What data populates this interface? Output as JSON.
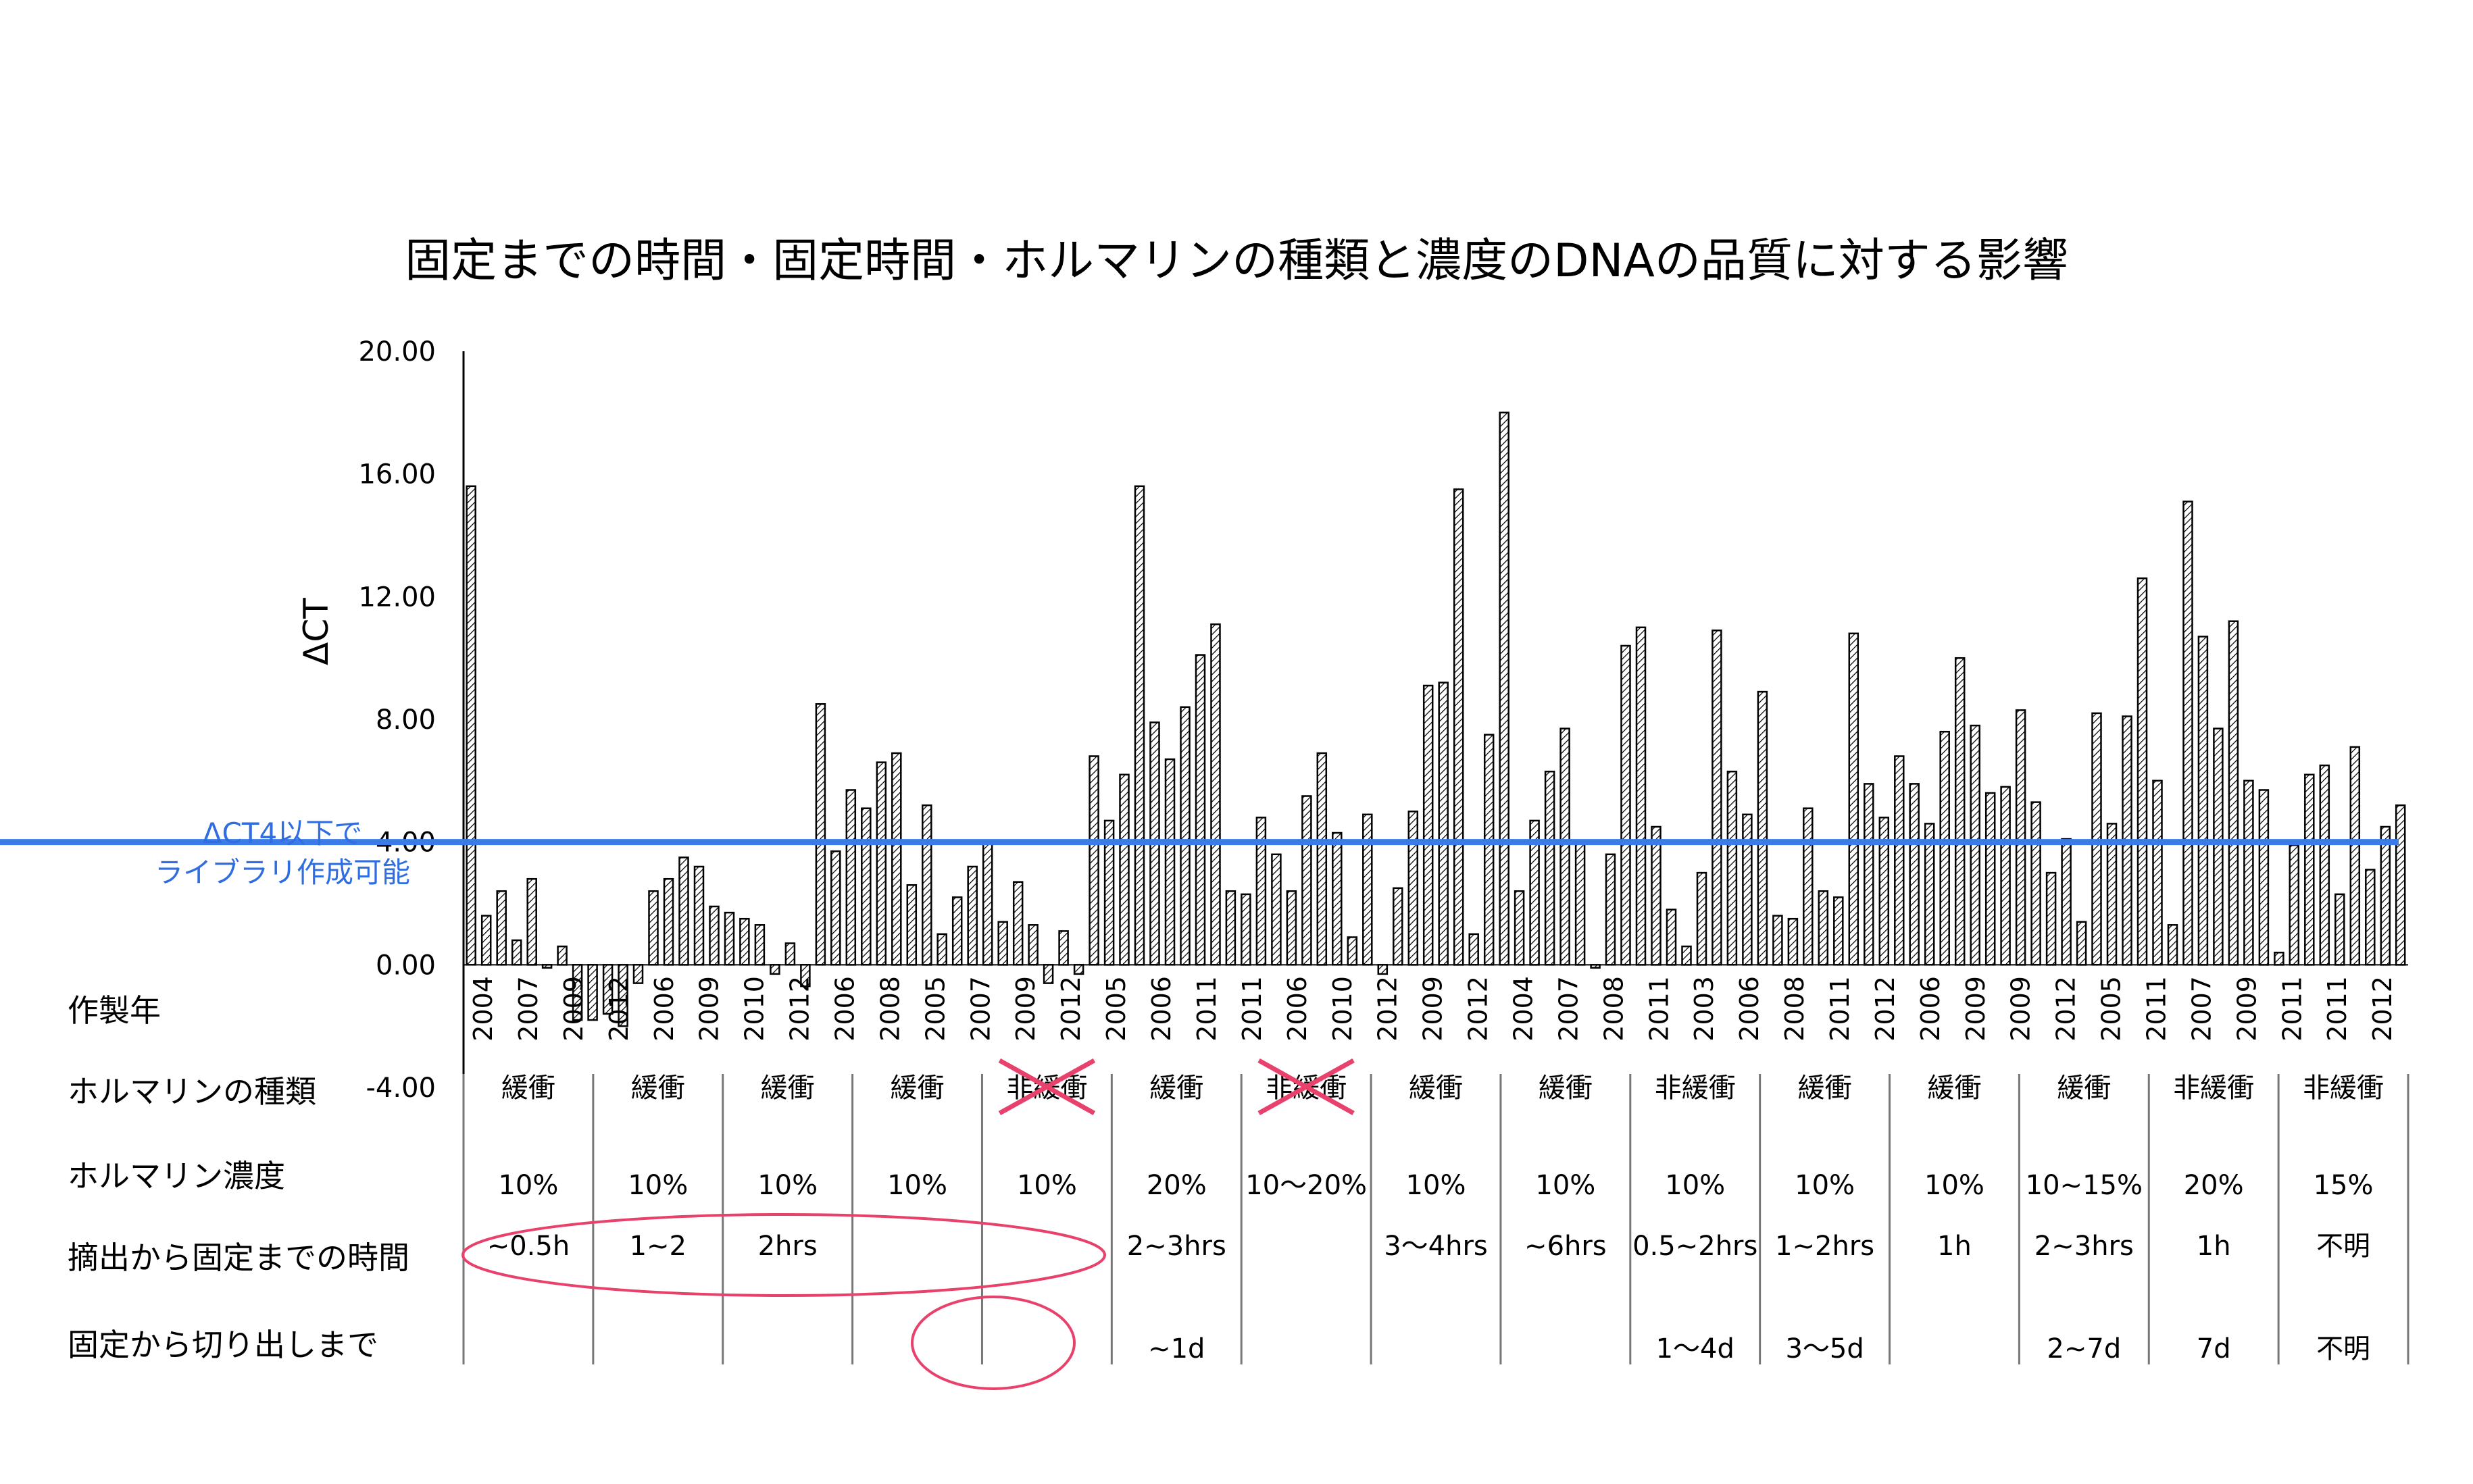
{
  "title": "固定までの時間・固定時間・ホルマリンの種類と濃度のDNAの品質に対する影響",
  "row_labels": {
    "year": "作製年",
    "formalin_type": "ホルマリンの種類",
    "formalin_conc": "ホルマリン濃度",
    "time_to_fix": "摘出から固定までの時間",
    "fix_to_cut": "固定から切り出しまで"
  },
  "threshold_annotation": {
    "line1": "ΔCT4以下で",
    "line2": "ライブラリ作成可能"
  },
  "colors": {
    "threshold": "#3b7be8",
    "highlight": "#e8416b",
    "bar_stroke": "#000000",
    "annotation_text": "#2f6de1"
  },
  "chart_data": {
    "type": "bar",
    "title": "固定までの時間・固定時間・ホルマリンの種類と濃度のDNAの品質に対する影響",
    "ylabel": "ΔCT",
    "xlabel": "作製年",
    "ylim": [
      -4,
      20
    ],
    "yticks": [
      "20.00",
      "16.00",
      "12.00",
      "8.00",
      "4.00",
      "0.00",
      "-4.00"
    ],
    "threshold": 4.0,
    "bar_pattern": "hatched",
    "values": [
      15.6,
      1.6,
      2.4,
      0.8,
      2.8,
      -0.1,
      0.6,
      -1.8,
      -1.8,
      -1.6,
      -2.0,
      -0.6,
      2.4,
      2.8,
      3.5,
      3.2,
      1.9,
      1.7,
      1.5,
      1.3,
      -0.3,
      0.7,
      -0.7,
      8.5,
      3.7,
      5.7,
      5.1,
      6.6,
      6.9,
      2.6,
      5.2,
      1.0,
      2.2,
      3.2,
      4.0,
      1.4,
      2.7,
      1.3,
      -0.6,
      1.1,
      -0.3,
      6.8,
      4.7,
      6.2,
      15.6,
      7.9,
      6.7,
      8.4,
      10.1,
      11.1,
      2.4,
      2.3,
      4.8,
      3.6,
      2.4,
      5.5,
      6.9,
      4.3,
      0.9,
      4.9,
      -0.3,
      2.5,
      5.0,
      9.1,
      9.2,
      15.5,
      1.0,
      7.5,
      18.0,
      2.4,
      4.7,
      6.3,
      7.7,
      4.0,
      -0.1,
      3.6,
      10.4,
      11.0,
      4.5,
      1.8,
      0.6,
      3.0,
      10.9,
      6.3,
      4.9,
      8.9,
      1.6,
      1.5,
      5.1,
      2.4,
      2.2,
      10.8,
      5.9,
      4.8,
      6.8,
      5.9,
      4.6,
      7.6,
      10.0,
      7.8,
      5.6,
      5.8,
      8.3,
      5.3,
      3.0,
      4.1,
      1.4,
      8.2,
      4.6,
      8.1,
      12.6,
      6.0,
      1.3,
      15.1,
      10.7,
      7.7,
      11.2,
      6.0,
      5.7,
      0.4,
      3.9,
      6.2,
      6.5,
      2.3,
      7.1,
      3.1,
      4.5,
      5.2
    ],
    "year_labels": [
      "2004",
      "2007",
      "2009",
      "2012",
      "2006",
      "2009",
      "2010",
      "2012",
      "2006",
      "2008",
      "2005",
      "2007",
      "2009",
      "2012",
      "2005",
      "2006",
      "2011",
      "2011",
      "2006",
      "2010",
      "2012",
      "2009",
      "2012",
      "2004",
      "2007",
      "2008",
      "2011",
      "2003",
      "2006",
      "2008",
      "2011",
      "2012",
      "2006",
      "2009",
      "2009",
      "2012",
      "2005",
      "2011",
      "2007",
      "2009",
      "2011",
      "2011",
      "2012"
    ],
    "groups": [
      {
        "type": "緩衝",
        "conc": "10%",
        "time_to_fix": "~0.5h",
        "fix_to_cut": ""
      },
      {
        "type": "緩衝",
        "conc": "10%",
        "time_to_fix": "1~2",
        "fix_to_cut": ""
      },
      {
        "type": "緩衝",
        "conc": "10%",
        "time_to_fix": "2hrs",
        "fix_to_cut": ""
      },
      {
        "type": "緩衝",
        "conc": "10%",
        "time_to_fix": "",
        "fix_to_cut": ""
      },
      {
        "type": "非緩衝",
        "conc": "10%",
        "time_to_fix": "",
        "fix_to_cut": "",
        "crossed_out": true
      },
      {
        "type": "緩衝",
        "conc": "20%",
        "time_to_fix": "2~3hrs",
        "fix_to_cut": "~1d"
      },
      {
        "type": "非緩衝",
        "conc": "10〜20%",
        "time_to_fix": "",
        "fix_to_cut": "",
        "crossed_out": true
      },
      {
        "type": "緩衝",
        "conc": "10%",
        "time_to_fix": "3〜4hrs",
        "fix_to_cut": ""
      },
      {
        "type": "緩衝",
        "conc": "10%",
        "time_to_fix": "~6hrs",
        "fix_to_cut": ""
      },
      {
        "type": "非緩衝",
        "conc": "10%",
        "time_to_fix": "0.5~2hrs",
        "fix_to_cut": "1〜4d"
      },
      {
        "type": "緩衝",
        "conc": "10%",
        "time_to_fix": "1~2hrs",
        "fix_to_cut": "3〜5d"
      },
      {
        "type": "緩衝",
        "conc": "10%",
        "time_to_fix": "1h",
        "fix_to_cut": ""
      },
      {
        "type": "緩衝",
        "conc": "10~15%",
        "time_to_fix": "2~3hrs",
        "fix_to_cut": "2~7d"
      },
      {
        "type": "非緩衝",
        "conc": "20%",
        "time_to_fix": "1h",
        "fix_to_cut": "7d"
      },
      {
        "type": "非緩衝",
        "conc": "15%",
        "time_to_fix": "不明",
        "fix_to_cut": "不明"
      }
    ]
  }
}
